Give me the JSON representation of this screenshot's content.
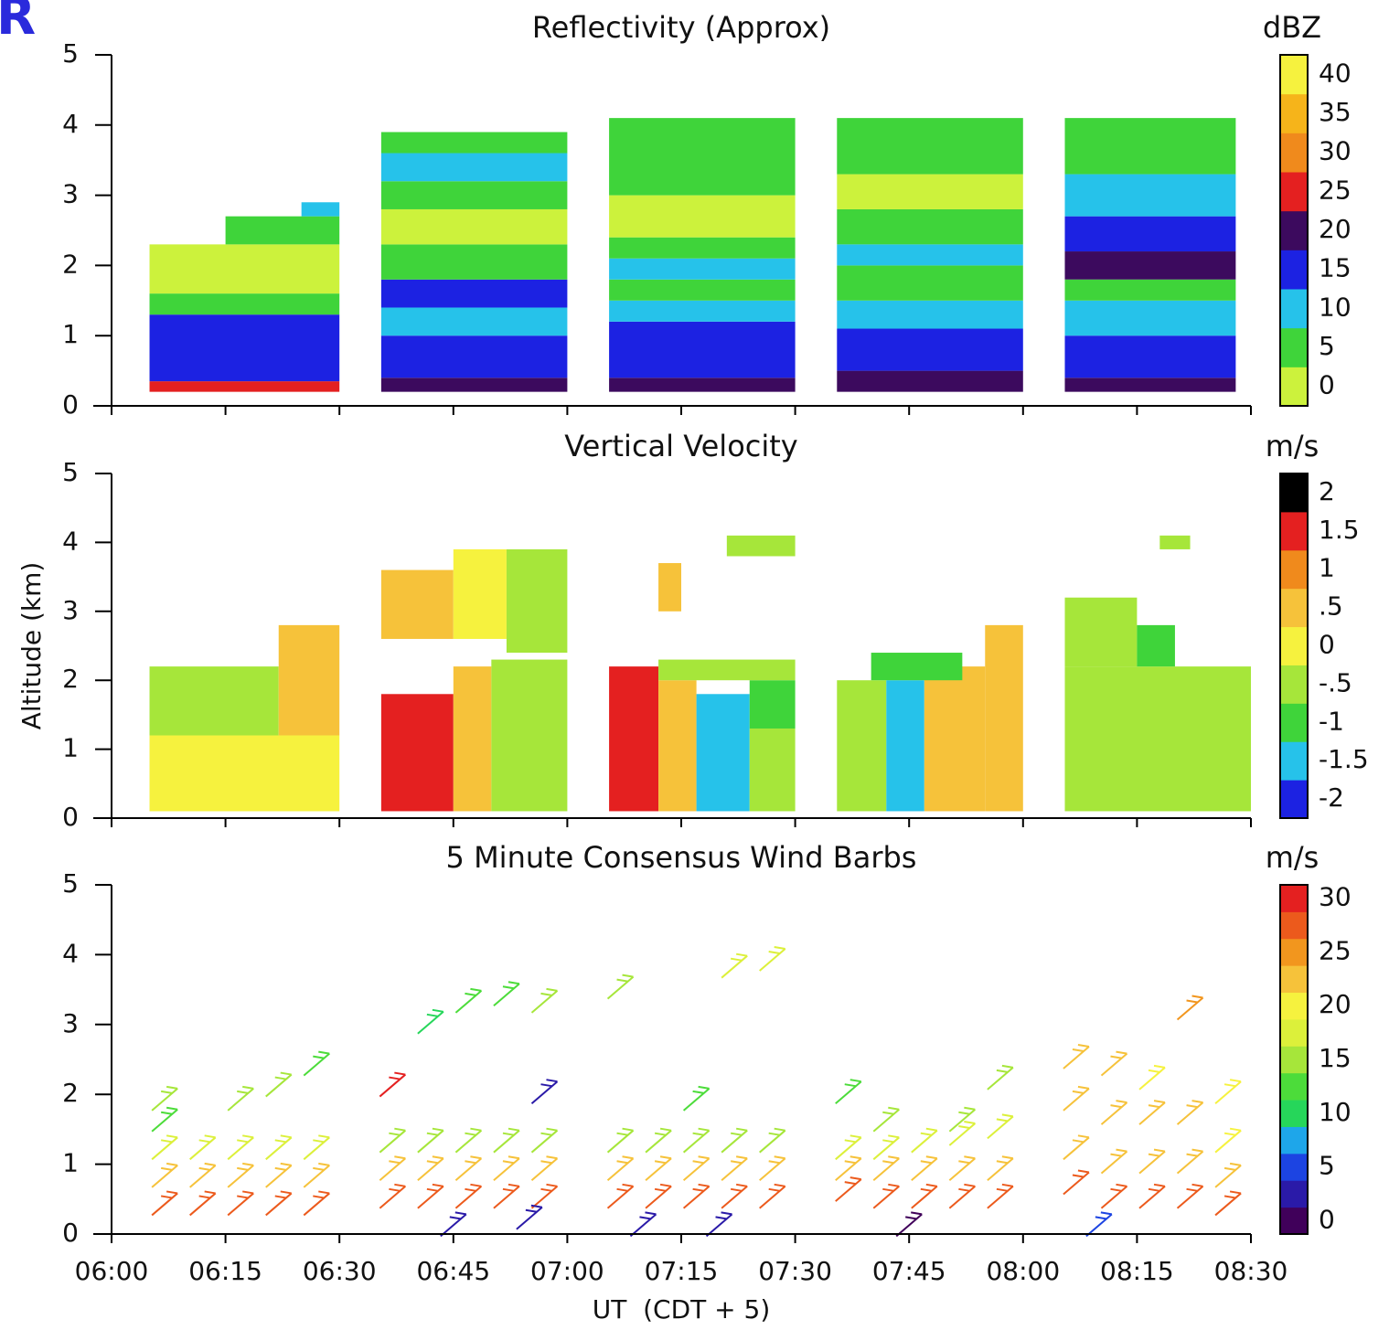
{
  "logo": "R",
  "chart_data": [
    {
      "type": "heatmap",
      "title": "Reflectivity (Approx)",
      "unit": "dBZ",
      "ylim": [
        0,
        5
      ],
      "yticks": [
        0,
        1,
        2,
        3,
        4,
        5
      ],
      "colorbar": {
        "levels": [
          0,
          5,
          10,
          15,
          20,
          25,
          30,
          35,
          40
        ],
        "colors": [
          "#ccf23c",
          "#3fd43a",
          "#26c2ea",
          "#1c22e2",
          "#3c0a5e",
          "#e42020",
          "#f08a1c",
          "#f6b41a",
          "#f6f23e"
        ],
        "ticks": [
          0,
          5,
          10,
          15,
          20,
          25,
          30,
          35,
          40
        ]
      },
      "cells": [
        {
          "x": [
            5,
            30
          ],
          "y": [
            0.2,
            0.35
          ],
          "value": 25
        },
        {
          "x": [
            5,
            30
          ],
          "y": [
            0.35,
            1.3
          ],
          "value": 15
        },
        {
          "x": [
            5,
            30
          ],
          "y": [
            1.3,
            1.6
          ],
          "value": 5
        },
        {
          "x": [
            5,
            30
          ],
          "y": [
            1.6,
            2.3
          ],
          "value": 0
        },
        {
          "x": [
            15,
            30
          ],
          "y": [
            2.3,
            2.7
          ],
          "value": 5
        },
        {
          "x": [
            25,
            30
          ],
          "y": [
            2.7,
            2.9
          ],
          "value": 10
        },
        {
          "x": [
            35.5,
            60
          ],
          "y": [
            0.2,
            0.4
          ],
          "value": 20
        },
        {
          "x": [
            35.5,
            60
          ],
          "y": [
            0.4,
            1.0
          ],
          "value": 15
        },
        {
          "x": [
            35.5,
            60
          ],
          "y": [
            1.0,
            1.4
          ],
          "value": 10
        },
        {
          "x": [
            35.5,
            60
          ],
          "y": [
            1.4,
            1.8
          ],
          "value": 15
        },
        {
          "x": [
            35.5,
            60
          ],
          "y": [
            1.8,
            2.3
          ],
          "value": 5
        },
        {
          "x": [
            35.5,
            60
          ],
          "y": [
            2.3,
            2.8
          ],
          "value": 0
        },
        {
          "x": [
            35.5,
            60
          ],
          "y": [
            2.8,
            3.2
          ],
          "value": 5
        },
        {
          "x": [
            35.5,
            60
          ],
          "y": [
            3.2,
            3.6
          ],
          "value": 10
        },
        {
          "x": [
            35.5,
            60
          ],
          "y": [
            3.6,
            3.9
          ],
          "value": 5
        },
        {
          "x": [
            65.5,
            90
          ],
          "y": [
            0.2,
            0.4
          ],
          "value": 20
        },
        {
          "x": [
            65.5,
            90
          ],
          "y": [
            0.4,
            1.2
          ],
          "value": 15
        },
        {
          "x": [
            65.5,
            90
          ],
          "y": [
            1.2,
            1.5
          ],
          "value": 10
        },
        {
          "x": [
            65.5,
            90
          ],
          "y": [
            1.5,
            1.8
          ],
          "value": 5
        },
        {
          "x": [
            65.5,
            90
          ],
          "y": [
            1.8,
            2.1
          ],
          "value": 10
        },
        {
          "x": [
            65.5,
            90
          ],
          "y": [
            2.1,
            2.4
          ],
          "value": 5
        },
        {
          "x": [
            65.5,
            90
          ],
          "y": [
            2.4,
            3.0
          ],
          "value": 0
        },
        {
          "x": [
            65.5,
            90
          ],
          "y": [
            3.0,
            4.1
          ],
          "value": 5
        },
        {
          "x": [
            95.5,
            120
          ],
          "y": [
            0.2,
            0.5
          ],
          "value": 20
        },
        {
          "x": [
            95.5,
            120
          ],
          "y": [
            0.5,
            1.1
          ],
          "value": 15
        },
        {
          "x": [
            95.5,
            120
          ],
          "y": [
            1.1,
            1.5
          ],
          "value": 10
        },
        {
          "x": [
            95.5,
            120
          ],
          "y": [
            1.5,
            2.0
          ],
          "value": 5
        },
        {
          "x": [
            95.5,
            120
          ],
          "y": [
            2.0,
            2.3
          ],
          "value": 10
        },
        {
          "x": [
            95.5,
            120
          ],
          "y": [
            2.3,
            2.8
          ],
          "value": 5
        },
        {
          "x": [
            95.5,
            120
          ],
          "y": [
            2.8,
            3.3
          ],
          "value": 0
        },
        {
          "x": [
            95.5,
            120
          ],
          "y": [
            3.3,
            4.1
          ],
          "value": 5
        },
        {
          "x": [
            125.5,
            148
          ],
          "y": [
            0.2,
            0.4
          ],
          "value": 20
        },
        {
          "x": [
            125.5,
            148
          ],
          "y": [
            0.4,
            1.0
          ],
          "value": 15
        },
        {
          "x": [
            125.5,
            148
          ],
          "y": [
            1.0,
            1.5
          ],
          "value": 10
        },
        {
          "x": [
            125.5,
            148
          ],
          "y": [
            1.5,
            1.8
          ],
          "value": 5
        },
        {
          "x": [
            125.5,
            148
          ],
          "y": [
            1.8,
            2.2
          ],
          "value": 20
        },
        {
          "x": [
            125.5,
            148
          ],
          "y": [
            2.2,
            2.7
          ],
          "value": 15
        },
        {
          "x": [
            125.5,
            148
          ],
          "y": [
            2.7,
            3.3
          ],
          "value": 10
        },
        {
          "x": [
            125.5,
            148
          ],
          "y": [
            3.3,
            4.1
          ],
          "value": 5
        }
      ]
    },
    {
      "type": "heatmap",
      "title": "Vertical Velocity",
      "unit": "m/s",
      "y_label": "Altitude (km)",
      "ylim": [
        0,
        5
      ],
      "yticks": [
        0,
        1,
        2,
        3,
        4,
        5
      ],
      "colorbar": {
        "levels": [
          -2,
          -1.5,
          -1,
          -0.5,
          0,
          0.5,
          1,
          1.5,
          2
        ],
        "colors": [
          "#1c22e2",
          "#26c2ea",
          "#3fd43a",
          "#a6e63a",
          "#f6f23e",
          "#f6c23a",
          "#f08a1c",
          "#e42020",
          "#000000"
        ],
        "ticks": [
          -2,
          -1.5,
          -1,
          {
            "value": -0.5,
            "label": "-.5"
          },
          0,
          {
            "value": 0.5,
            "label": ".5"
          },
          1,
          1.5,
          2
        ]
      },
      "cells": [
        {
          "x": [
            5,
            30
          ],
          "y": [
            0.1,
            1.2
          ],
          "value": 0
        },
        {
          "x": [
            5,
            22
          ],
          "y": [
            1.2,
            2.2
          ],
          "value": -0.5
        },
        {
          "x": [
            22,
            30
          ],
          "y": [
            1.2,
            2.8
          ],
          "value": 0.5
        },
        {
          "x": [
            35.5,
            45
          ],
          "y": [
            0.1,
            1.8
          ],
          "value": 1.5
        },
        {
          "x": [
            45,
            50
          ],
          "y": [
            0.1,
            2.2
          ],
          "value": 0.5
        },
        {
          "x": [
            50,
            60
          ],
          "y": [
            0.1,
            2.3
          ],
          "value": -0.5
        },
        {
          "x": [
            35.5,
            45
          ],
          "y": [
            2.6,
            3.6
          ],
          "value": 0.5
        },
        {
          "x": [
            45,
            52
          ],
          "y": [
            2.6,
            3.9
          ],
          "value": 0
        },
        {
          "x": [
            52,
            60
          ],
          "y": [
            2.4,
            3.9
          ],
          "value": -0.5
        },
        {
          "x": [
            65.5,
            72
          ],
          "y": [
            0.1,
            2.2
          ],
          "value": 1.5
        },
        {
          "x": [
            72,
            77
          ],
          "y": [
            0.1,
            2.0
          ],
          "value": 0.5
        },
        {
          "x": [
            77,
            84
          ],
          "y": [
            0.1,
            1.8
          ],
          "value": -1.5
        },
        {
          "x": [
            84,
            90
          ],
          "y": [
            0.1,
            1.3
          ],
          "value": -0.5
        },
        {
          "x": [
            84,
            90
          ],
          "y": [
            1.3,
            2.0
          ],
          "value": -1
        },
        {
          "x": [
            72,
            90
          ],
          "y": [
            2.0,
            2.3
          ],
          "value": -0.5
        },
        {
          "x": [
            72,
            75
          ],
          "y": [
            3.0,
            3.7
          ],
          "value": 0.5
        },
        {
          "x": [
            81,
            90
          ],
          "y": [
            3.8,
            4.1
          ],
          "value": -0.5
        },
        {
          "x": [
            95.5,
            102
          ],
          "y": [
            0.1,
            2.0
          ],
          "value": -0.5
        },
        {
          "x": [
            102,
            107
          ],
          "y": [
            0.1,
            2.0
          ],
          "value": -1.5
        },
        {
          "x": [
            107,
            115
          ],
          "y": [
            0.1,
            2.2
          ],
          "value": 0.5
        },
        {
          "x": [
            115,
            120
          ],
          "y": [
            0.1,
            2.8
          ],
          "value": 0.5
        },
        {
          "x": [
            100,
            112
          ],
          "y": [
            2.0,
            2.4
          ],
          "value": -1
        },
        {
          "x": [
            125.5,
            150
          ],
          "y": [
            0.1,
            2.2
          ],
          "value": -0.5
        },
        {
          "x": [
            125.5,
            135
          ],
          "y": [
            2.2,
            3.2
          ],
          "value": -0.5
        },
        {
          "x": [
            135,
            140
          ],
          "y": [
            2.2,
            2.8
          ],
          "value": -1
        },
        {
          "x": [
            138,
            142
          ],
          "y": [
            3.9,
            4.1
          ],
          "value": -0.5
        }
      ]
    },
    {
      "type": "barbs",
      "title": "5 Minute Consensus Wind Barbs",
      "unit": "m/s",
      "x_label": "UT  (CDT + 5)",
      "ylim": [
        0,
        5
      ],
      "yticks": [
        0,
        1,
        2,
        3,
        4,
        5
      ],
      "xlim": [
        0,
        150
      ],
      "xticks": [
        {
          "value": 0,
          "label": "06:00"
        },
        {
          "value": 15,
          "label": "06:15"
        },
        {
          "value": 30,
          "label": "06:30"
        },
        {
          "value": 45,
          "label": "06:45"
        },
        {
          "value": 60,
          "label": "07:00"
        },
        {
          "value": 75,
          "label": "07:15"
        },
        {
          "value": 90,
          "label": "07:30"
        },
        {
          "value": 105,
          "label": "07:45"
        },
        {
          "value": 120,
          "label": "08:00"
        },
        {
          "value": 135,
          "label": "08:15"
        },
        {
          "value": 150,
          "label": "08:30"
        }
      ],
      "colorbar": {
        "levels": [
          0,
          2.5,
          5,
          7.5,
          10,
          12.5,
          15,
          17.5,
          20,
          22.5,
          25,
          27.5,
          30
        ],
        "colors": [
          "#40005a",
          "#2a1aa8",
          "#1c44e2",
          "#1ea6ea",
          "#26d65a",
          "#4cdc3a",
          "#a6e63a",
          "#dcf03a",
          "#f6f23e",
          "#f6c23a",
          "#f2961e",
          "#ec5a1c",
          "#e42020"
        ],
        "ticks": [
          0,
          5,
          10,
          15,
          20,
          25,
          30
        ]
      },
      "barbs": {
        "x": [
          7,
          12,
          17,
          22,
          27,
          37,
          42,
          47,
          52,
          57,
          67,
          72,
          77,
          82,
          87,
          97,
          102,
          107,
          112,
          117,
          127,
          132,
          137,
          142,
          147,
          7,
          12,
          17,
          22,
          27,
          37,
          42,
          47,
          52,
          57,
          67,
          72,
          77,
          82,
          87,
          97,
          102,
          107,
          112,
          117,
          127,
          132,
          137,
          142,
          147,
          7,
          12,
          17,
          22,
          27,
          37,
          42,
          47,
          52,
          57,
          67,
          72,
          77,
          82,
          87,
          97,
          102,
          107,
          112,
          117,
          127,
          132,
          137,
          142,
          147,
          7,
          7,
          17,
          22,
          27,
          37,
          42,
          47,
          52,
          57,
          57,
          67,
          77,
          82,
          87,
          97,
          102,
          112,
          117,
          127,
          132,
          137,
          142,
          147,
          45,
          55,
          70,
          80,
          105,
          130
        ],
        "y": [
          0.4,
          0.4,
          0.4,
          0.4,
          0.4,
          0.5,
          0.5,
          0.5,
          0.5,
          0.5,
          0.5,
          0.5,
          0.5,
          0.5,
          0.5,
          0.6,
          0.5,
          0.5,
          0.5,
          0.5,
          0.7,
          0.5,
          0.5,
          0.5,
          0.4,
          0.8,
          0.8,
          0.8,
          0.8,
          0.8,
          0.9,
          0.9,
          0.9,
          0.9,
          0.9,
          0.9,
          0.9,
          0.9,
          0.9,
          0.9,
          0.9,
          0.9,
          0.9,
          0.9,
          0.9,
          1.2,
          1.0,
          1.0,
          1.0,
          0.8,
          1.2,
          1.2,
          1.2,
          1.2,
          1.2,
          1.3,
          1.3,
          1.3,
          1.3,
          1.3,
          1.3,
          1.3,
          1.3,
          1.3,
          1.3,
          1.2,
          1.2,
          1.3,
          1.4,
          1.5,
          1.9,
          1.7,
          1.7,
          1.7,
          1.3,
          1.9,
          1.6,
          1.9,
          2.1,
          2.4,
          2.1,
          3.0,
          3.3,
          3.4,
          3.3,
          2.0,
          3.5,
          1.9,
          3.8,
          3.9,
          2.0,
          1.6,
          1.6,
          2.2,
          2.5,
          2.4,
          2.2,
          3.2,
          2.0,
          0.1,
          0.2,
          0.1,
          0.1,
          0.1,
          0.1
        ],
        "values": [
          28,
          28,
          28,
          28,
          27,
          27,
          28,
          28,
          27,
          28,
          28,
          28,
          28,
          28,
          27,
          27,
          28,
          28,
          28,
          28,
          28,
          28,
          28,
          28,
          28,
          22,
          22,
          22,
          22,
          22,
          22,
          22,
          22,
          22,
          22,
          22,
          22,
          22,
          22,
          22,
          22,
          22,
          22,
          22,
          22,
          22,
          22,
          22,
          22,
          22,
          17,
          17,
          17,
          17,
          17,
          14,
          14,
          14,
          14,
          14,
          14,
          14,
          14,
          14,
          14,
          17,
          17,
          17,
          17,
          17,
          22,
          22,
          22,
          22,
          20,
          14,
          12,
          14,
          14,
          12,
          30,
          11,
          12,
          12,
          15,
          3,
          16,
          12,
          18,
          18,
          12,
          14,
          15,
          16,
          22,
          22,
          21,
          24,
          20,
          3,
          3,
          2,
          3,
          1,
          4
        ]
      }
    }
  ]
}
